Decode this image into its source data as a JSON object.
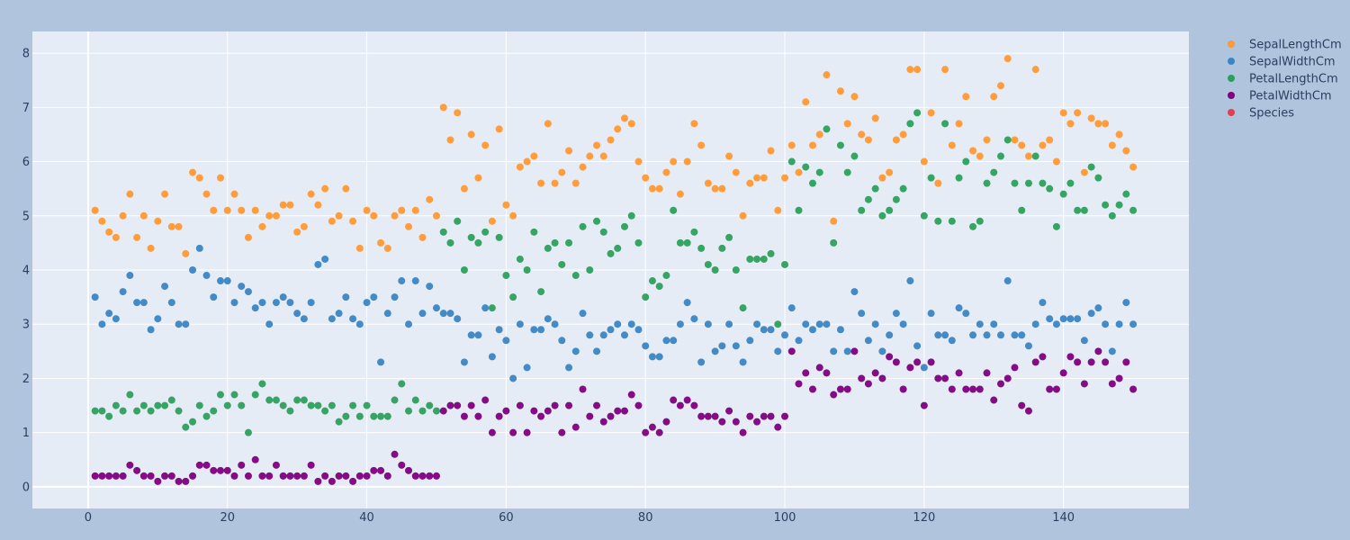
{
  "chart_data": {
    "type": "scatter",
    "title": "",
    "xlabel": "",
    "ylabel": "",
    "xlim": [
      -8,
      158
    ],
    "ylim": [
      -0.4,
      8.4
    ],
    "x_ticks": [
      0,
      20,
      40,
      60,
      80,
      100,
      120,
      140
    ],
    "y_ticks": [
      0,
      1,
      2,
      3,
      4,
      5,
      6,
      7,
      8
    ],
    "grid": true,
    "legend_position": "top-right",
    "background": "#b0c4de",
    "plot_background": "#e5ecf6",
    "x": [
      1,
      2,
      3,
      4,
      5,
      6,
      7,
      8,
      9,
      10,
      11,
      12,
      13,
      14,
      15,
      16,
      17,
      18,
      19,
      20,
      21,
      22,
      23,
      24,
      25,
      26,
      27,
      28,
      29,
      30,
      31,
      32,
      33,
      34,
      35,
      36,
      37,
      38,
      39,
      40,
      41,
      42,
      43,
      44,
      45,
      46,
      47,
      48,
      49,
      50,
      51,
      52,
      53,
      54,
      55,
      56,
      57,
      58,
      59,
      60,
      61,
      62,
      63,
      64,
      65,
      66,
      67,
      68,
      69,
      70,
      71,
      72,
      73,
      74,
      75,
      76,
      77,
      78,
      79,
      80,
      81,
      82,
      83,
      84,
      85,
      86,
      87,
      88,
      89,
      90,
      91,
      92,
      93,
      94,
      95,
      96,
      97,
      98,
      99,
      100,
      101,
      102,
      103,
      104,
      105,
      106,
      107,
      108,
      109,
      110,
      111,
      112,
      113,
      114,
      115,
      116,
      117,
      118,
      119,
      120,
      121,
      122,
      123,
      124,
      125,
      126,
      127,
      128,
      129,
      130,
      131,
      132,
      133,
      134,
      135,
      136,
      137,
      138,
      139,
      140,
      141,
      142,
      143,
      144,
      145,
      146,
      147,
      148,
      149,
      150
    ],
    "series": [
      {
        "name": "SepalLengthCm",
        "color": "#ff9933",
        "values": [
          5.1,
          4.9,
          4.7,
          4.6,
          5.0,
          5.4,
          4.6,
          5.0,
          4.4,
          4.9,
          5.4,
          4.8,
          4.8,
          4.3,
          5.8,
          5.7,
          5.4,
          5.1,
          5.7,
          5.1,
          5.4,
          5.1,
          4.6,
          5.1,
          4.8,
          5.0,
          5.0,
          5.2,
          5.2,
          4.7,
          4.8,
          5.4,
          5.2,
          5.5,
          4.9,
          5.0,
          5.5,
          4.9,
          4.4,
          5.1,
          5.0,
          4.5,
          4.4,
          5.0,
          5.1,
          4.8,
          5.1,
          4.6,
          5.3,
          5.0,
          7.0,
          6.4,
          6.9,
          5.5,
          6.5,
          5.7,
          6.3,
          4.9,
          6.6,
          5.2,
          5.0,
          5.9,
          6.0,
          6.1,
          5.6,
          6.7,
          5.6,
          5.8,
          6.2,
          5.6,
          5.9,
          6.1,
          6.3,
          6.1,
          6.4,
          6.6,
          6.8,
          6.7,
          6.0,
          5.7,
          5.5,
          5.5,
          5.8,
          6.0,
          5.4,
          6.0,
          6.7,
          6.3,
          5.6,
          5.5,
          5.5,
          6.1,
          5.8,
          5.0,
          5.6,
          5.7,
          5.7,
          6.2,
          5.1,
          5.7,
          6.3,
          5.8,
          7.1,
          6.3,
          6.5,
          7.6,
          4.9,
          7.3,
          6.7,
          7.2,
          6.5,
          6.4,
          6.8,
          5.7,
          5.8,
          6.4,
          6.5,
          7.7,
          7.7,
          6.0,
          6.9,
          5.6,
          7.7,
          6.3,
          6.7,
          7.2,
          6.2,
          6.1,
          6.4,
          7.2,
          7.4,
          7.9,
          6.4,
          6.3,
          6.1,
          7.7,
          6.3,
          6.4,
          6.0,
          6.9,
          6.7,
          6.9,
          5.8,
          6.8,
          6.7,
          6.7,
          6.3,
          6.5,
          6.2,
          5.9
        ]
      },
      {
        "name": "SepalWidthCm",
        "color": "#3a86c4",
        "values": [
          3.5,
          3.0,
          3.2,
          3.1,
          3.6,
          3.9,
          3.4,
          3.4,
          2.9,
          3.1,
          3.7,
          3.4,
          3.0,
          3.0,
          4.0,
          4.4,
          3.9,
          3.5,
          3.8,
          3.8,
          3.4,
          3.7,
          3.6,
          3.3,
          3.4,
          3.0,
          3.4,
          3.5,
          3.4,
          3.2,
          3.1,
          3.4,
          4.1,
          4.2,
          3.1,
          3.2,
          3.5,
          3.1,
          3.0,
          3.4,
          3.5,
          2.3,
          3.2,
          3.5,
          3.8,
          3.0,
          3.8,
          3.2,
          3.7,
          3.3,
          3.2,
          3.2,
          3.1,
          2.3,
          2.8,
          2.8,
          3.3,
          2.4,
          2.9,
          2.7,
          2.0,
          3.0,
          2.2,
          2.9,
          2.9,
          3.1,
          3.0,
          2.7,
          2.2,
          2.5,
          3.2,
          2.8,
          2.5,
          2.8,
          2.9,
          3.0,
          2.8,
          3.0,
          2.9,
          2.6,
          2.4,
          2.4,
          2.7,
          2.7,
          3.0,
          3.4,
          3.1,
          2.3,
          3.0,
          2.5,
          2.6,
          3.0,
          2.6,
          2.3,
          2.7,
          3.0,
          2.9,
          2.9,
          2.5,
          2.8,
          3.3,
          2.7,
          3.0,
          2.9,
          3.0,
          3.0,
          2.5,
          2.9,
          2.5,
          3.6,
          3.2,
          2.7,
          3.0,
          2.5,
          2.8,
          3.2,
          3.0,
          3.8,
          2.6,
          2.2,
          3.2,
          2.8,
          2.8,
          2.7,
          3.3,
          3.2,
          2.8,
          3.0,
          2.8,
          3.0,
          2.8,
          3.8,
          2.8,
          2.8,
          2.6,
          3.0,
          3.4,
          3.1,
          3.0,
          3.1,
          3.1,
          3.1,
          2.7,
          3.2,
          3.3,
          3.0,
          2.5,
          3.0,
          3.4,
          3.0
        ]
      },
      {
        "name": "PetalLengthCm",
        "color": "#2ca05a",
        "values": [
          1.4,
          1.4,
          1.3,
          1.5,
          1.4,
          1.7,
          1.4,
          1.5,
          1.4,
          1.5,
          1.5,
          1.6,
          1.4,
          1.1,
          1.2,
          1.5,
          1.3,
          1.4,
          1.7,
          1.5,
          1.7,
          1.5,
          1.0,
          1.7,
          1.9,
          1.6,
          1.6,
          1.5,
          1.4,
          1.6,
          1.6,
          1.5,
          1.5,
          1.4,
          1.5,
          1.2,
          1.3,
          1.5,
          1.3,
          1.5,
          1.3,
          1.3,
          1.3,
          1.6,
          1.9,
          1.4,
          1.6,
          1.4,
          1.5,
          1.4,
          4.7,
          4.5,
          4.9,
          4.0,
          4.6,
          4.5,
          4.7,
          3.3,
          4.6,
          3.9,
          3.5,
          4.2,
          4.0,
          4.7,
          3.6,
          4.4,
          4.5,
          4.1,
          4.5,
          3.9,
          4.8,
          4.0,
          4.9,
          4.7,
          4.3,
          4.4,
          4.8,
          5.0,
          4.5,
          3.5,
          3.8,
          3.7,
          3.9,
          5.1,
          4.5,
          4.5,
          4.7,
          4.4,
          4.1,
          4.0,
          4.4,
          4.6,
          4.0,
          3.3,
          4.2,
          4.2,
          4.2,
          4.3,
          3.0,
          4.1,
          6.0,
          5.1,
          5.9,
          5.6,
          5.8,
          6.6,
          4.5,
          6.3,
          5.8,
          6.1,
          5.1,
          5.3,
          5.5,
          5.0,
          5.1,
          5.3,
          5.5,
          6.7,
          6.9,
          5.0,
          5.7,
          4.9,
          6.7,
          4.9,
          5.7,
          6.0,
          4.8,
          4.9,
          5.6,
          5.8,
          6.1,
          6.4,
          5.6,
          5.1,
          5.6,
          6.1,
          5.6,
          5.5,
          4.8,
          5.4,
          5.6,
          5.1,
          5.1,
          5.9,
          5.7,
          5.2,
          5.0,
          5.2,
          5.4,
          5.1
        ]
      },
      {
        "name": "PetalWidthCm",
        "color": "#800080",
        "values": [
          0.2,
          0.2,
          0.2,
          0.2,
          0.2,
          0.4,
          0.3,
          0.2,
          0.2,
          0.1,
          0.2,
          0.2,
          0.1,
          0.1,
          0.2,
          0.4,
          0.4,
          0.3,
          0.3,
          0.3,
          0.2,
          0.4,
          0.2,
          0.5,
          0.2,
          0.2,
          0.4,
          0.2,
          0.2,
          0.2,
          0.2,
          0.4,
          0.1,
          0.2,
          0.1,
          0.2,
          0.2,
          0.1,
          0.2,
          0.2,
          0.3,
          0.3,
          0.2,
          0.6,
          0.4,
          0.3,
          0.2,
          0.2,
          0.2,
          0.2,
          1.4,
          1.5,
          1.5,
          1.3,
          1.5,
          1.3,
          1.6,
          1.0,
          1.3,
          1.4,
          1.0,
          1.5,
          1.0,
          1.4,
          1.3,
          1.4,
          1.5,
          1.0,
          1.5,
          1.1,
          1.8,
          1.3,
          1.5,
          1.2,
          1.3,
          1.4,
          1.4,
          1.7,
          1.5,
          1.0,
          1.1,
          1.0,
          1.2,
          1.6,
          1.5,
          1.6,
          1.5,
          1.3,
          1.3,
          1.3,
          1.2,
          1.4,
          1.2,
          1.0,
          1.3,
          1.2,
          1.3,
          1.3,
          1.1,
          1.3,
          2.5,
          1.9,
          2.1,
          1.8,
          2.2,
          2.1,
          1.7,
          1.8,
          1.8,
          2.5,
          2.0,
          1.9,
          2.1,
          2.0,
          2.4,
          2.3,
          1.8,
          2.2,
          2.3,
          1.5,
          2.3,
          2.0,
          2.0,
          1.8,
          2.1,
          1.8,
          1.8,
          1.8,
          2.1,
          1.6,
          1.9,
          2.0,
          2.2,
          1.5,
          1.4,
          2.3,
          2.4,
          1.8,
          1.8,
          2.1,
          2.4,
          2.3,
          1.9,
          2.3,
          2.5,
          2.3,
          1.9,
          2.0,
          2.3,
          1.8
        ]
      },
      {
        "name": "Species",
        "color": "#e04050",
        "values": []
      }
    ]
  }
}
